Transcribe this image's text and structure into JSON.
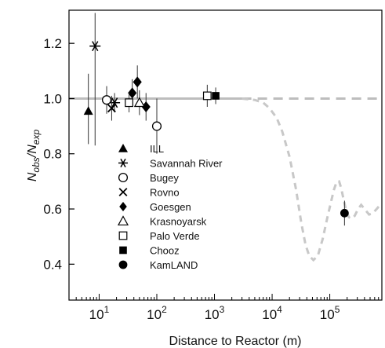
{
  "chart_data": {
    "type": "scatter",
    "title": "",
    "xlabel": "Distance to Reactor (m)",
    "ylabel_main": "N",
    "ylabel_sub1": "obs",
    "ylabel_slash": "/N",
    "ylabel_sub2": "exp",
    "xscale": "log",
    "xlim": [
      3,
      800000
    ],
    "ylim": [
      0.27,
      1.32
    ],
    "x_ticks": [
      {
        "value": 10,
        "base": "10",
        "exp": "1"
      },
      {
        "value": 100,
        "base": "10",
        "exp": "2"
      },
      {
        "value": 1000,
        "base": "10",
        "exp": "3"
      },
      {
        "value": 10000,
        "base": "10",
        "exp": "4"
      },
      {
        "value": 100000,
        "base": "10",
        "exp": "5"
      }
    ],
    "y_ticks": [
      {
        "value": 0.4,
        "label": "0.4"
      },
      {
        "value": 0.6,
        "label": "0.6"
      },
      {
        "value": 0.8,
        "label": "0.8"
      },
      {
        "value": 1.0,
        "label": "1.0"
      },
      {
        "value": 1.2,
        "label": "1.2"
      }
    ],
    "series": [
      {
        "name": "ILL",
        "marker": "triangle-filled",
        "points": [
          {
            "x": 6.5,
            "y": 0.955,
            "ylo": 0.835,
            "yhi": 1.09
          }
        ]
      },
      {
        "name": "Savannah River",
        "marker": "asterisk",
        "points": [
          {
            "x": 8.5,
            "y": 1.19,
            "ylo": 0.83,
            "yhi": 1.31
          },
          {
            "x": 18.5,
            "y": 0.985,
            "ylo": 0.95,
            "yhi": 1.02
          }
        ]
      },
      {
        "name": "Bugey",
        "marker": "circle-open",
        "points": [
          {
            "x": 13.5,
            "y": 0.995,
            "ylo": 0.945,
            "yhi": 1.045
          },
          {
            "x": 100,
            "y": 0.9,
            "ylo": 0.8,
            "yhi": 1.0
          }
        ]
      },
      {
        "name": "Rovno",
        "marker": "cross",
        "points": [
          {
            "x": 16.5,
            "y": 0.965,
            "ylo": 0.92,
            "yhi": 1.01
          }
        ]
      },
      {
        "name": "Goesgen",
        "marker": "diamond-filled",
        "points": [
          {
            "x": 37.5,
            "y": 1.02,
            "ylo": 0.97,
            "yhi": 1.07
          },
          {
            "x": 46,
            "y": 1.06,
            "ylo": 1.0,
            "yhi": 1.12
          },
          {
            "x": 65,
            "y": 0.97,
            "ylo": 0.92,
            "yhi": 1.02
          }
        ]
      },
      {
        "name": "Krasnoyarsk",
        "marker": "triangle-open",
        "points": [
          {
            "x": 50,
            "y": 0.985,
            "ylo": 0.94,
            "yhi": 1.03
          }
        ]
      },
      {
        "name": "Palo Verde",
        "marker": "square-open",
        "points": [
          {
            "x": 33,
            "y": 0.985,
            "ylo": 0.95,
            "yhi": 1.02
          },
          {
            "x": 750,
            "y": 1.01,
            "ylo": 0.97,
            "yhi": 1.05
          }
        ]
      },
      {
        "name": "Chooz",
        "marker": "square-filled",
        "points": [
          {
            "x": 1050,
            "y": 1.01,
            "ylo": 0.98,
            "yhi": 1.04
          }
        ]
      },
      {
        "name": "KamLAND",
        "marker": "circle-filled",
        "points": [
          {
            "x": 180000,
            "y": 0.585,
            "ylo": 0.54,
            "yhi": 0.63
          }
        ]
      }
    ],
    "reference_line": {
      "y": 1.0,
      "style": "solid-gray-then-dashed"
    },
    "oscillation_curve": {
      "style": "dashed-light-gray",
      "points": [
        [
          3000,
          1.0
        ],
        [
          5000,
          0.995
        ],
        [
          7000,
          0.985
        ],
        [
          9000,
          0.965
        ],
        [
          12000,
          0.93
        ],
        [
          15000,
          0.88
        ],
        [
          20000,
          0.79
        ],
        [
          26000,
          0.67
        ],
        [
          32000,
          0.55
        ],
        [
          38000,
          0.47
        ],
        [
          44000,
          0.43
        ],
        [
          52000,
          0.415
        ],
        [
          62000,
          0.43
        ],
        [
          75000,
          0.49
        ],
        [
          90000,
          0.565
        ],
        [
          105000,
          0.625
        ],
        [
          118000,
          0.67
        ],
        [
          132000,
          0.7
        ],
        [
          145000,
          0.7
        ],
        [
          158000,
          0.675
        ],
        [
          175000,
          0.63
        ],
        [
          195000,
          0.59
        ],
        [
          215000,
          0.57
        ],
        [
          240000,
          0.565
        ],
        [
          270000,
          0.575
        ],
        [
          310000,
          0.6
        ],
        [
          350000,
          0.615
        ],
        [
          400000,
          0.6
        ],
        [
          480000,
          0.58
        ],
        [
          560000,
          0.585
        ],
        [
          650000,
          0.6
        ],
        [
          750000,
          0.615
        ]
      ]
    }
  }
}
